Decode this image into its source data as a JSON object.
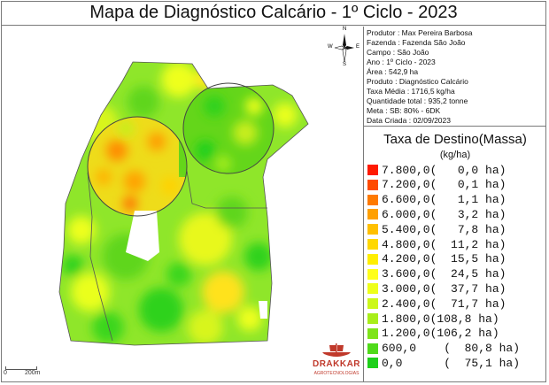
{
  "title": "Mapa de Diagnóstico Calcário - 1º Ciclo - 2023",
  "info": [
    "Produtor : Max Pereira Barbosa",
    "Fazenda : Fazenda São João",
    "Campo : São João",
    "Ano : 1º Ciclo - 2023",
    "Área : 542,9 ha",
    "Produto : Diagnóstico Calcário",
    "Taxa Média : 1716,5 kg/ha",
    "Quantidade total : 935,2 tonne",
    "Meta : SB: 80% - 6DK",
    "Data Criada : 02/09/2023"
  ],
  "legend": {
    "title": "Taxa de Destino(Massa)",
    "unit": "(kg/ha)",
    "entries": [
      {
        "label": "7.800,0(   0,0 ha)",
        "color": "#ff1a00"
      },
      {
        "label": "7.200,0(   0,1 ha)",
        "color": "#ff4a00"
      },
      {
        "label": "6.600,0(   1,1 ha)",
        "color": "#ff7a00"
      },
      {
        "label": "6.000,0(   3,2 ha)",
        "color": "#ffa000"
      },
      {
        "label": "5.400,0(   7,8 ha)",
        "color": "#ffc000"
      },
      {
        "label": "4.800,0(  11,2 ha)",
        "color": "#ffd800"
      },
      {
        "label": "4.200,0(  15,5 ha)",
        "color": "#ffee00"
      },
      {
        "label": "3.600,0(  24,5 ha)",
        "color": "#ffff1a"
      },
      {
        "label": "3.000,0(  37,7 ha)",
        "color": "#eeff1a"
      },
      {
        "label": "2.400,0(  71,7 ha)",
        "color": "#ccf81a"
      },
      {
        "label": "1.800,0(108,8 ha)",
        "color": "#a8ee1a"
      },
      {
        "label": "1.200,0(106,2 ha)",
        "color": "#7ee41a"
      },
      {
        "label": "600,0    (  80,8 ha)",
        "color": "#4fda1a"
      },
      {
        "label": "0,0      (  75,1 ha)",
        "color": "#1ed01a"
      }
    ]
  },
  "scale": {
    "start": "0",
    "end": "200m"
  },
  "north": {
    "n": "N",
    "s": "S",
    "e": "E",
    "w": "W"
  },
  "logo": {
    "name": "DRAKKAR",
    "sub": "AGROTECNOLOGIAS"
  }
}
